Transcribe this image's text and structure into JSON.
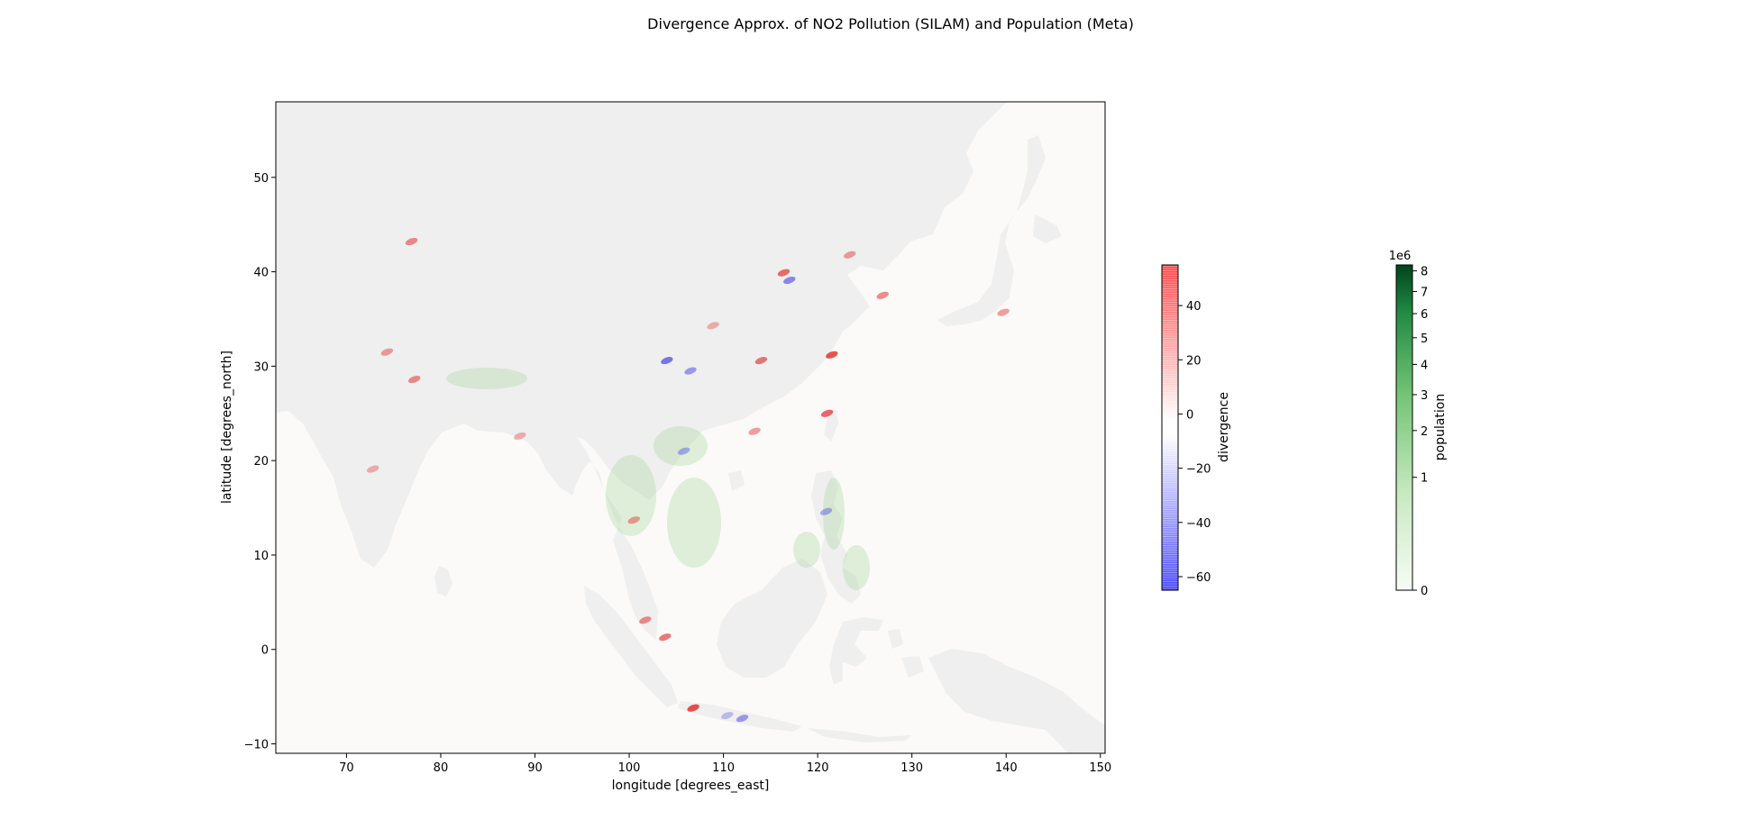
{
  "chart_data": [
    {
      "type": "heatmap",
      "title": "Divergence Approx. of NO2 Pollution (SILAM) and Population (Meta)",
      "xlabel": "longitude [degrees_east]",
      "ylabel": "latitude [degrees_north]",
      "xlim": [
        62.5,
        150.5
      ],
      "ylim": [
        -11,
        58
      ],
      "xticks": [
        70,
        80,
        90,
        100,
        110,
        120,
        130,
        140,
        150
      ],
      "yticks": [
        -10,
        0,
        10,
        20,
        30,
        40,
        50
      ],
      "grid": false,
      "hotspots": [
        {
          "lon": 121.5,
          "lat": 31.2,
          "divergence": 45
        },
        {
          "lon": 114.0,
          "lat": 30.6,
          "divergence": 35
        },
        {
          "lon": 116.4,
          "lat": 39.9,
          "divergence": 38
        },
        {
          "lon": 106.8,
          "lat": -6.2,
          "divergence": 48
        },
        {
          "lon": 113.3,
          "lat": 23.1,
          "divergence": 25
        },
        {
          "lon": 126.9,
          "lat": 37.5,
          "divergence": 30
        },
        {
          "lon": 139.7,
          "lat": 35.7,
          "divergence": 25
        },
        {
          "lon": 121.0,
          "lat": 25.0,
          "divergence": 40
        },
        {
          "lon": 77.2,
          "lat": 28.6,
          "divergence": 30
        },
        {
          "lon": 72.8,
          "lat": 19.1,
          "divergence": 20
        },
        {
          "lon": 101.7,
          "lat": 3.1,
          "divergence": 30
        },
        {
          "lon": 104.0,
          "lat": 30.6,
          "divergence": -35
        },
        {
          "lon": 106.5,
          "lat": 29.5,
          "divergence": -25
        },
        {
          "lon": 120.9,
          "lat": 14.6,
          "divergence": -20
        },
        {
          "lon": 100.5,
          "lat": 13.7,
          "divergence": 25
        },
        {
          "lon": 105.8,
          "lat": 21.0,
          "divergence": -20
        },
        {
          "lon": 117.0,
          "lat": 39.1,
          "divergence": -30
        },
        {
          "lon": 112.0,
          "lat": -7.3,
          "divergence": -25
        },
        {
          "lon": 76.9,
          "lat": 43.2,
          "divergence": 30
        },
        {
          "lon": 88.4,
          "lat": 22.6,
          "divergence": 20
        },
        {
          "lon": 74.3,
          "lat": 31.5,
          "divergence": 25
        },
        {
          "lon": 108.9,
          "lat": 34.3,
          "divergence": 20
        },
        {
          "lon": 123.4,
          "lat": 41.8,
          "divergence": 25
        },
        {
          "lon": 103.8,
          "lat": 1.3,
          "divergence": 35
        },
        {
          "lon": 110.4,
          "lat": -7.0,
          "divergence": -15
        }
      ],
      "ocean_color": "#fbfaf8",
      "land_color": "#efefef"
    },
    {
      "type": "colorbar",
      "label": "divergence",
      "range": [
        -65,
        55
      ],
      "ticks": [
        40,
        20,
        0,
        -20,
        -40,
        -60
      ],
      "tick_labels": [
        "40",
        "20",
        "0",
        "−20",
        "−40",
        "−60"
      ],
      "colors": [
        "#ff4040",
        "#ffffff",
        "#4040ff"
      ]
    },
    {
      "type": "colorbar",
      "label": "population",
      "scale": "sqrt",
      "range": [
        0,
        8.3
      ],
      "ticks": [
        0,
        1,
        2,
        3,
        4,
        5,
        6,
        7,
        8
      ],
      "tick_labels": [
        "0",
        "1",
        "2",
        "3",
        "4",
        "5",
        "6",
        "7",
        "8"
      ],
      "offset_text": "1e6",
      "colors": [
        "#f7fcf5",
        "#00441b"
      ]
    }
  ]
}
